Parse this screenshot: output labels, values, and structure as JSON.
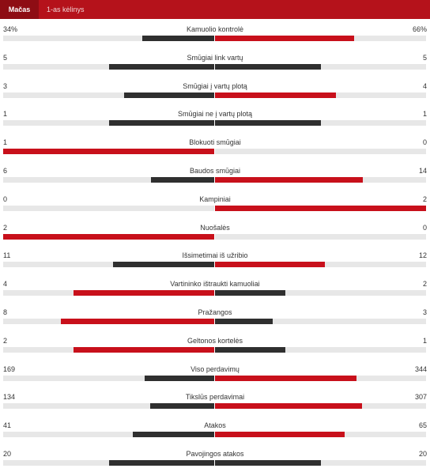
{
  "tabs": {
    "active_label": "Mačas",
    "second_label": "1-as kėlinys"
  },
  "colors": {
    "leader": "#c8101b",
    "trailer": "#2f2f2f",
    "tie": "#2f2f2f",
    "track": "#e7e7e7",
    "header": "#b5121b",
    "active_tab": "#8e0d14"
  },
  "stats": [
    {
      "name": "Kamuolio kontrolė",
      "home_label": "34%",
      "away_label": "66%",
      "home_value": 34,
      "away_value": 66
    },
    {
      "name": "Smūgiai link vartų",
      "home_label": "5",
      "away_label": "5",
      "home_value": 5,
      "away_value": 5
    },
    {
      "name": "Smūgiai į vartų plotą",
      "home_label": "3",
      "away_label": "4",
      "home_value": 3,
      "away_value": 4
    },
    {
      "name": "Smūgiai ne į vartų plotą",
      "home_label": "1",
      "away_label": "1",
      "home_value": 1,
      "away_value": 1
    },
    {
      "name": "Blokuoti smūgiai",
      "home_label": "1",
      "away_label": "0",
      "home_value": 1,
      "away_value": 0
    },
    {
      "name": "Baudos smūgiai",
      "home_label": "6",
      "away_label": "14",
      "home_value": 6,
      "away_value": 14
    },
    {
      "name": "Kampiniai",
      "home_label": "0",
      "away_label": "2",
      "home_value": 0,
      "away_value": 2
    },
    {
      "name": "Nuošalės",
      "home_label": "2",
      "away_label": "0",
      "home_value": 2,
      "away_value": 0
    },
    {
      "name": "Išsimetimai iš užribio",
      "home_label": "11",
      "away_label": "12",
      "home_value": 11,
      "away_value": 12
    },
    {
      "name": "Vartininko ištraukti kamuoliai",
      "home_label": "4",
      "away_label": "2",
      "home_value": 4,
      "away_value": 2
    },
    {
      "name": "Pražangos",
      "home_label": "8",
      "away_label": "3",
      "home_value": 8,
      "away_value": 3
    },
    {
      "name": "Geltonos kortelės",
      "home_label": "2",
      "away_label": "1",
      "home_value": 2,
      "away_value": 1
    },
    {
      "name": "Viso perdavimų",
      "home_label": "169",
      "away_label": "344",
      "home_value": 169,
      "away_value": 344
    },
    {
      "name": "Tikslūs perdavimai",
      "home_label": "134",
      "away_label": "307",
      "home_value": 134,
      "away_value": 307
    },
    {
      "name": "Atakos",
      "home_label": "41",
      "away_label": "65",
      "home_value": 41,
      "away_value": 65
    },
    {
      "name": "Pavojingos atakos",
      "home_label": "20",
      "away_label": "20",
      "home_value": 20,
      "away_value": 20
    }
  ]
}
